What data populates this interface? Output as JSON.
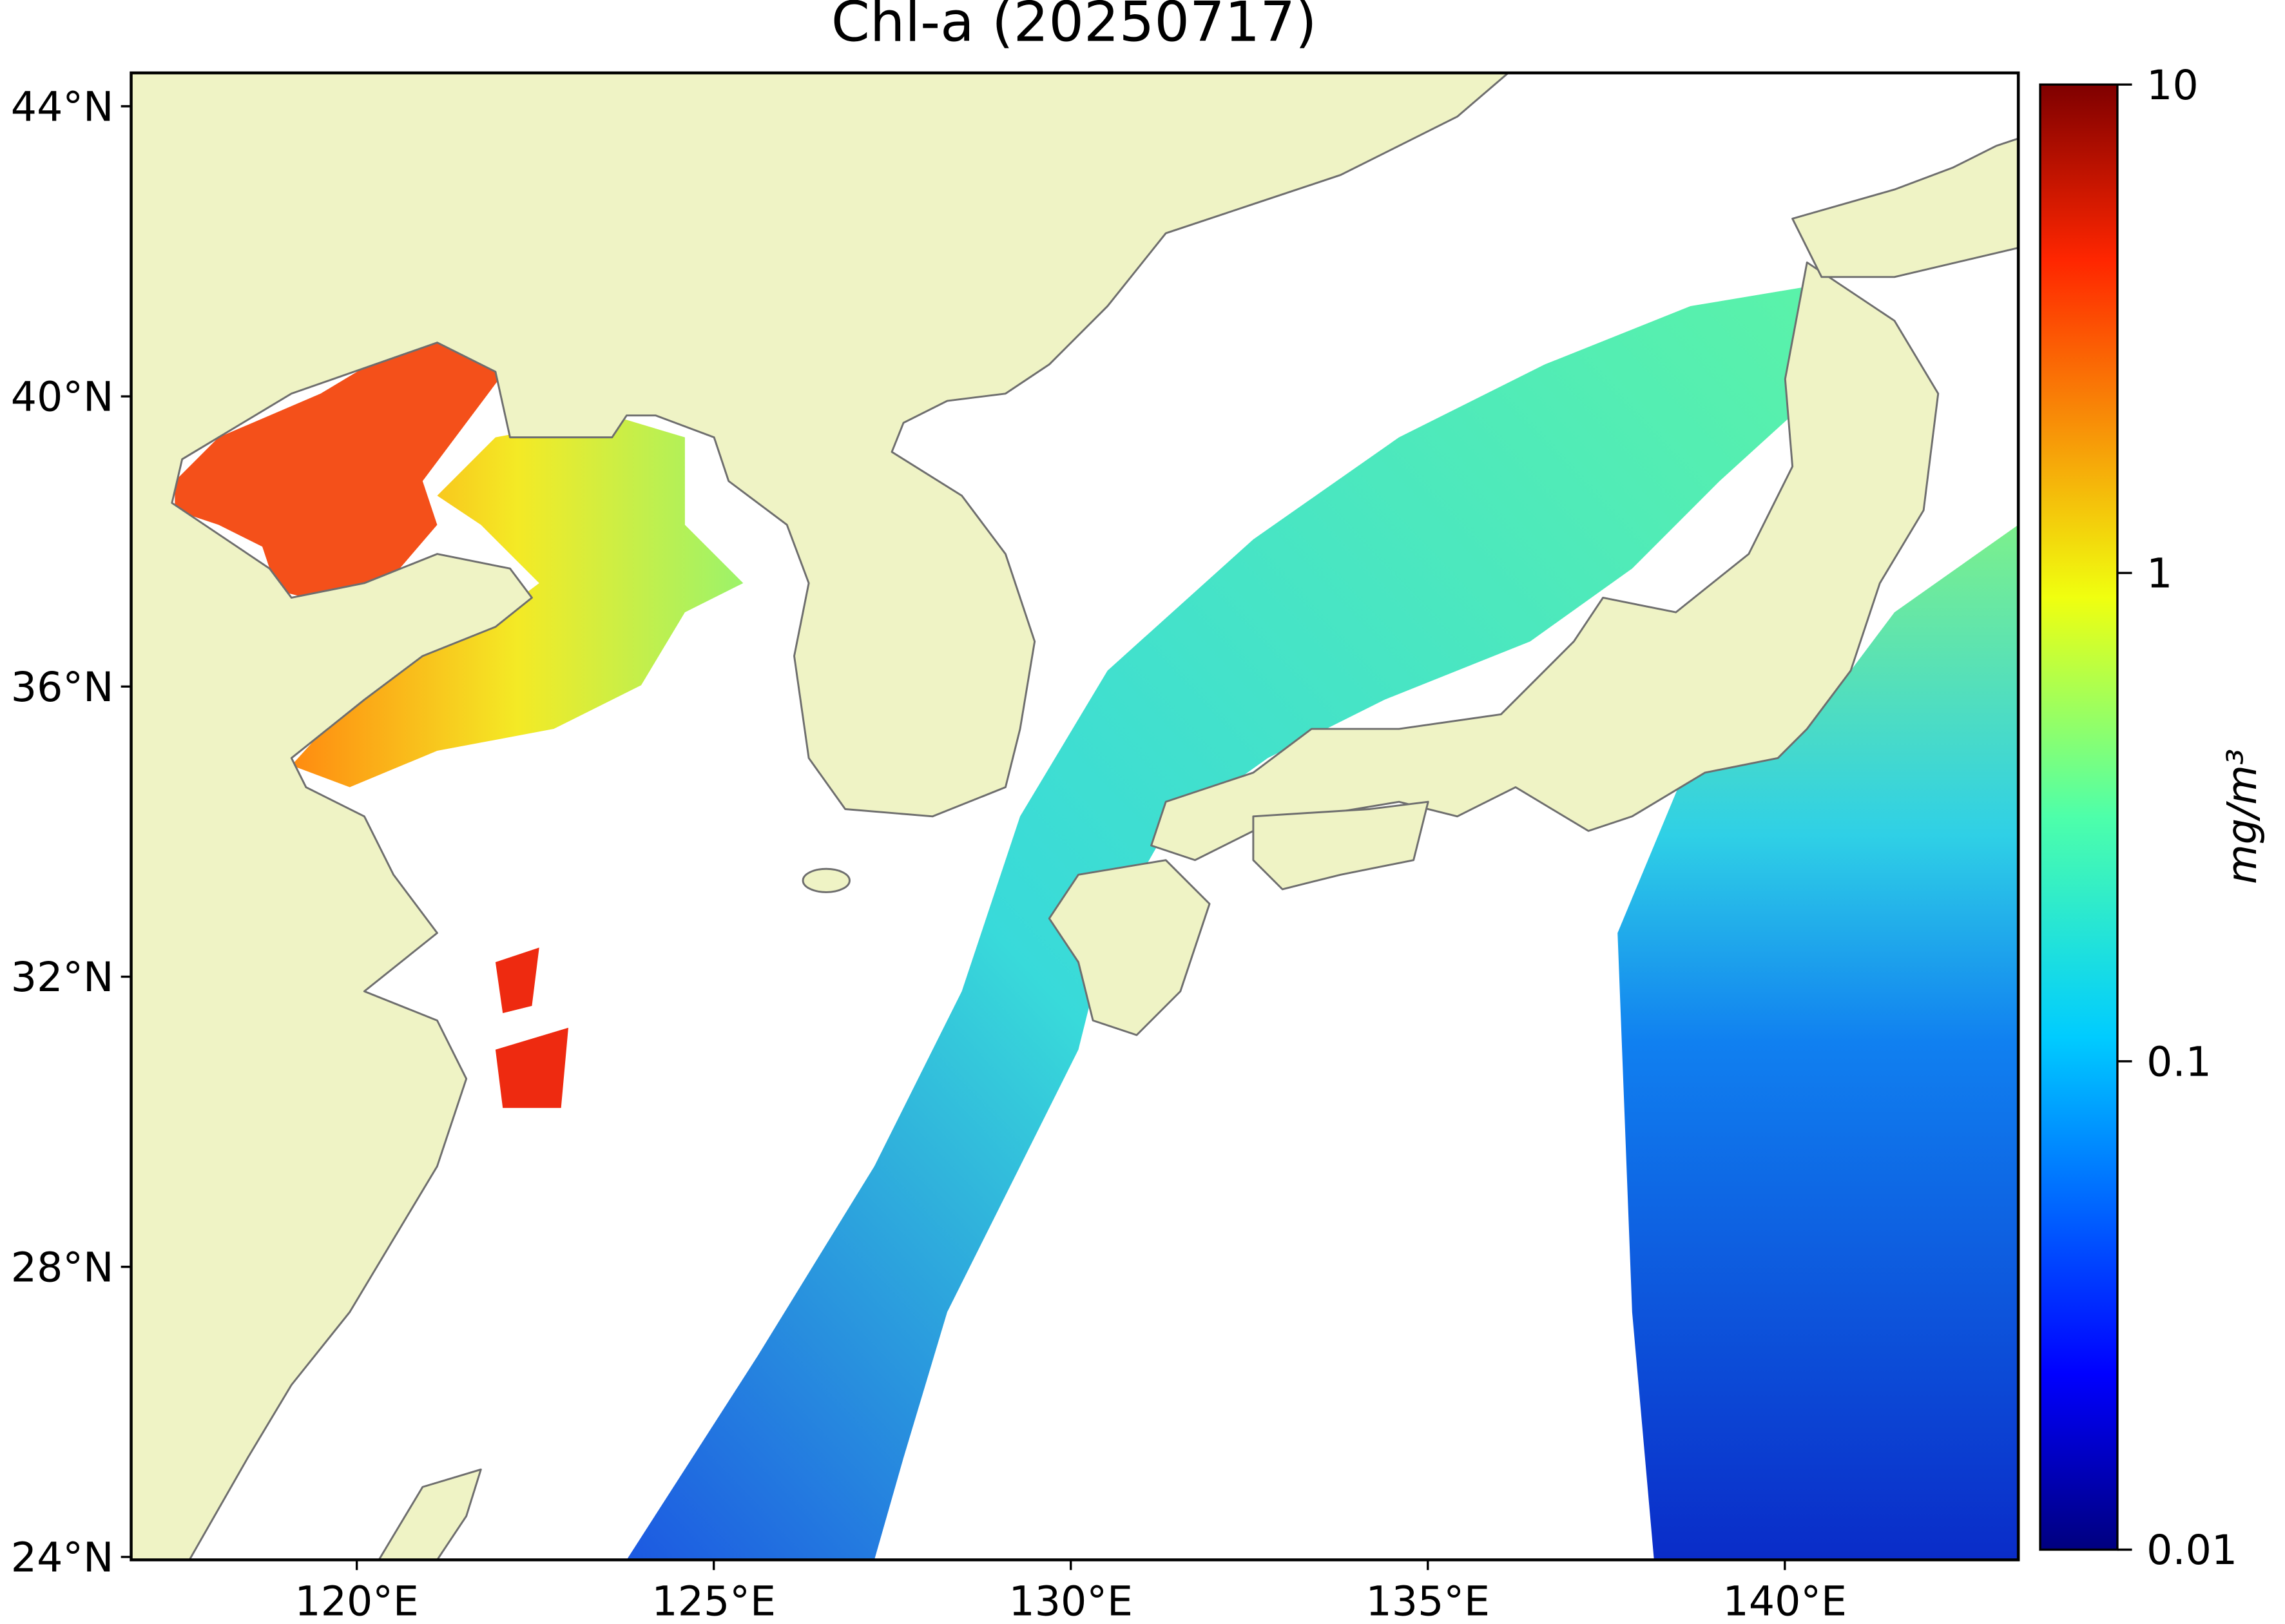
{
  "title": "Chl-a (20250717)",
  "xlim": [
    116.84,
    143.27
  ],
  "ylim": [
    23.96,
    44.46
  ],
  "lon_ticks": [
    {
      "value": 120,
      "label": "120°E"
    },
    {
      "value": 125,
      "label": "125°E"
    },
    {
      "value": 130,
      "label": "130°E"
    },
    {
      "value": 135,
      "label": "135°E"
    },
    {
      "value": 140,
      "label": "140°E"
    }
  ],
  "lat_ticks": [
    {
      "value": 24,
      "label": "24°N"
    },
    {
      "value": 28,
      "label": "28°N"
    },
    {
      "value": 32,
      "label": "32°N"
    },
    {
      "value": 36,
      "label": "36°N"
    },
    {
      "value": 40,
      "label": "40°N"
    },
    {
      "value": 44,
      "label": "44°N"
    }
  ],
  "colorbar": {
    "label": "mg/m³",
    "scale": "log",
    "lim": [
      0.01,
      10
    ],
    "ticks": [
      0.01,
      0.1,
      1,
      10
    ]
  }
}
